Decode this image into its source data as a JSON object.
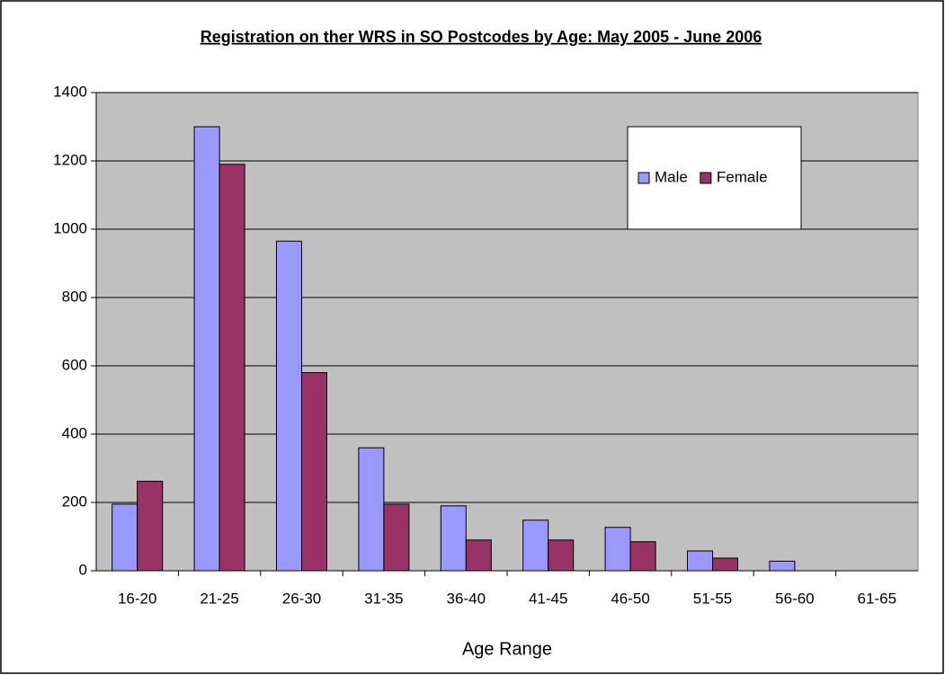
{
  "chart_data": {
    "type": "bar",
    "title": "Registration on ther WRS in SO Postcodes by Age: May 2005 - June 2006",
    "x_label": "Age Range",
    "categories": [
      "16-20",
      "21-25",
      "26-30",
      "31-35",
      "36-40",
      "41-45",
      "46-50",
      "51-55",
      "56-60",
      "61-65"
    ],
    "series": [
      {
        "name": "Male",
        "color": "#9999ff",
        "values": [
          195,
          1300,
          965,
          360,
          190,
          148,
          127,
          58,
          28,
          0
        ]
      },
      {
        "name": "Female",
        "color": "#993366",
        "values": [
          262,
          1190,
          580,
          195,
          90,
          90,
          85,
          37,
          0,
          0
        ]
      }
    ],
    "ylim": [
      0,
      1400
    ],
    "yticks": [
      0,
      200,
      400,
      600,
      800,
      1000,
      1200,
      1400
    ],
    "grid": true,
    "legend_position": "upper right",
    "plot_background": "#c0c0c0"
  }
}
